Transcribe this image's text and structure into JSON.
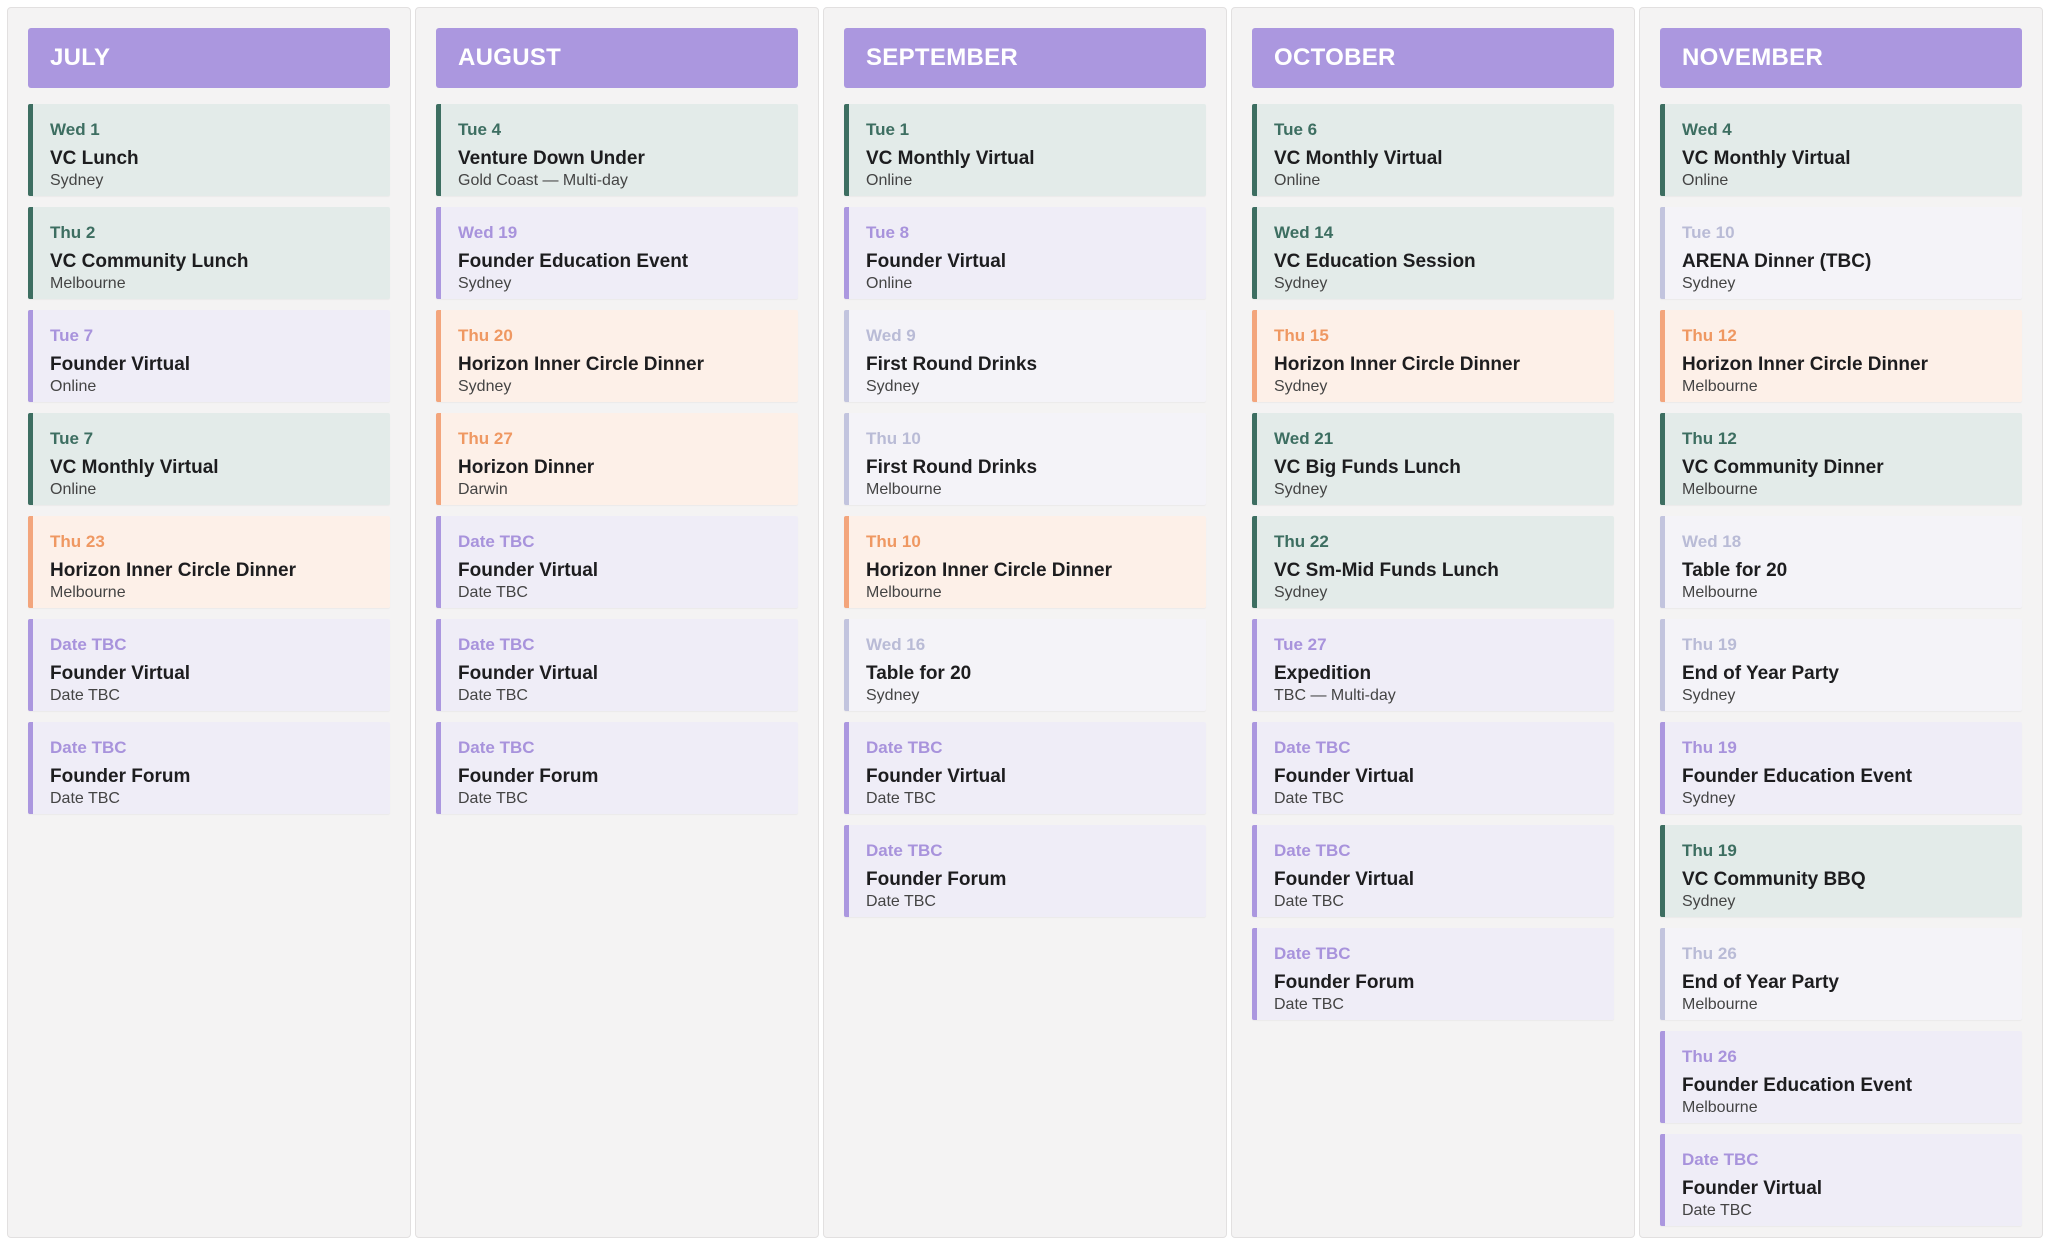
{
  "colors": {
    "header": "#ab97df",
    "vc": "#3d6e61",
    "founder": "#ab97df",
    "horizon": "#f3a57c",
    "community": "#c2c4de"
  },
  "months": [
    {
      "name": "JULY",
      "events": [
        {
          "date": "Wed 1",
          "title": "VC Lunch",
          "location": "Sydney",
          "type": "vc"
        },
        {
          "date": "Thu 2",
          "title": "VC Community Lunch",
          "location": "Melbourne",
          "type": "vc"
        },
        {
          "date": "Tue 7",
          "title": "Founder Virtual",
          "location": "Online",
          "type": "founder"
        },
        {
          "date": "Tue 7",
          "title": "VC Monthly Virtual",
          "location": "Online",
          "type": "vc"
        },
        {
          "date": "Thu 23",
          "title": "Horizon Inner Circle Dinner",
          "location": "Melbourne",
          "type": "horizon"
        },
        {
          "date": "Date TBC",
          "title": "Founder Virtual",
          "location": "Date TBC",
          "type": "founder"
        },
        {
          "date": "Date TBC",
          "title": "Founder Forum",
          "location": "Date TBC",
          "type": "founder"
        }
      ]
    },
    {
      "name": "AUGUST",
      "events": [
        {
          "date": "Tue 4",
          "title": "Venture Down Under",
          "location": "Gold Coast — Multi-day",
          "type": "vc"
        },
        {
          "date": "Wed 19",
          "title": "Founder Education Event",
          "location": "Sydney",
          "type": "founder"
        },
        {
          "date": "Thu 20",
          "title": "Horizon Inner Circle Dinner",
          "location": "Sydney",
          "type": "horizon"
        },
        {
          "date": "Thu 27",
          "title": "Horizon Dinner",
          "location": "Darwin",
          "type": "horizon"
        },
        {
          "date": "Date TBC",
          "title": "Founder Virtual",
          "location": "Date TBC",
          "type": "founder"
        },
        {
          "date": "Date TBC",
          "title": "Founder Virtual",
          "location": "Date TBC",
          "type": "founder"
        },
        {
          "date": "Date TBC",
          "title": "Founder Forum",
          "location": "Date TBC",
          "type": "founder"
        }
      ]
    },
    {
      "name": "SEPTEMBER",
      "events": [
        {
          "date": "Tue 1",
          "title": "VC Monthly Virtual",
          "location": "Online",
          "type": "vc"
        },
        {
          "date": "Tue 8",
          "title": "Founder Virtual",
          "location": "Online",
          "type": "founder"
        },
        {
          "date": "Wed 9",
          "title": "First Round Drinks",
          "location": "Sydney",
          "type": "community"
        },
        {
          "date": "Thu 10",
          "title": "First Round Drinks",
          "location": "Melbourne",
          "type": "community"
        },
        {
          "date": "Thu 10",
          "title": "Horizon Inner Circle Dinner",
          "location": "Melbourne",
          "type": "horizon"
        },
        {
          "date": "Wed 16",
          "title": "Table for 20",
          "location": "Sydney",
          "type": "community"
        },
        {
          "date": "Date TBC",
          "title": "Founder Virtual",
          "location": "Date TBC",
          "type": "founder"
        },
        {
          "date": "Date TBC",
          "title": "Founder Forum",
          "location": "Date TBC",
          "type": "founder"
        }
      ]
    },
    {
      "name": "OCTOBER",
      "events": [
        {
          "date": "Tue 6",
          "title": "VC Monthly Virtual",
          "location": "Online",
          "type": "vc"
        },
        {
          "date": "Wed 14",
          "title": "VC Education Session",
          "location": "Sydney",
          "type": "vc"
        },
        {
          "date": "Thu 15",
          "title": "Horizon Inner Circle Dinner",
          "location": "Sydney",
          "type": "horizon"
        },
        {
          "date": "Wed 21",
          "title": "VC Big Funds Lunch",
          "location": "Sydney",
          "type": "vc"
        },
        {
          "date": "Thu 22",
          "title": "VC Sm-Mid Funds Lunch",
          "location": "Sydney",
          "type": "vc"
        },
        {
          "date": "Tue 27",
          "title": "Expedition",
          "location": "TBC — Multi-day",
          "type": "founder"
        },
        {
          "date": "Date TBC",
          "title": "Founder Virtual",
          "location": "Date TBC",
          "type": "founder"
        },
        {
          "date": "Date TBC",
          "title": "Founder Virtual",
          "location": "Date TBC",
          "type": "founder"
        },
        {
          "date": "Date TBC",
          "title": "Founder Forum",
          "location": "Date TBC",
          "type": "founder"
        }
      ]
    },
    {
      "name": "NOVEMBER",
      "events": [
        {
          "date": "Wed 4",
          "title": "VC Monthly Virtual",
          "location": "Online",
          "type": "vc"
        },
        {
          "date": "Tue 10",
          "title": "ARENA Dinner (TBC)",
          "location": "Sydney",
          "type": "community"
        },
        {
          "date": "Thu 12",
          "title": "Horizon Inner Circle Dinner",
          "location": "Melbourne",
          "type": "horizon"
        },
        {
          "date": "Thu 12",
          "title": "VC Community Dinner",
          "location": "Melbourne",
          "type": "vc"
        },
        {
          "date": "Wed 18",
          "title": "Table for 20",
          "location": "Melbourne",
          "type": "community"
        },
        {
          "date": "Thu 19",
          "title": "End of Year Party",
          "location": "Sydney",
          "type": "community"
        },
        {
          "date": "Thu 19",
          "title": "Founder Education Event",
          "location": "Sydney",
          "type": "founder"
        },
        {
          "date": "Thu 19",
          "title": "VC Community BBQ",
          "location": "Sydney",
          "type": "vc"
        },
        {
          "date": "Thu 26",
          "title": "End of Year Party",
          "location": "Melbourne",
          "type": "community"
        },
        {
          "date": "Thu 26",
          "title": "Founder Education Event",
          "location": "Melbourne",
          "type": "founder"
        },
        {
          "date": "Date TBC",
          "title": "Founder Virtual",
          "location": "Date TBC",
          "type": "founder"
        }
      ]
    }
  ]
}
